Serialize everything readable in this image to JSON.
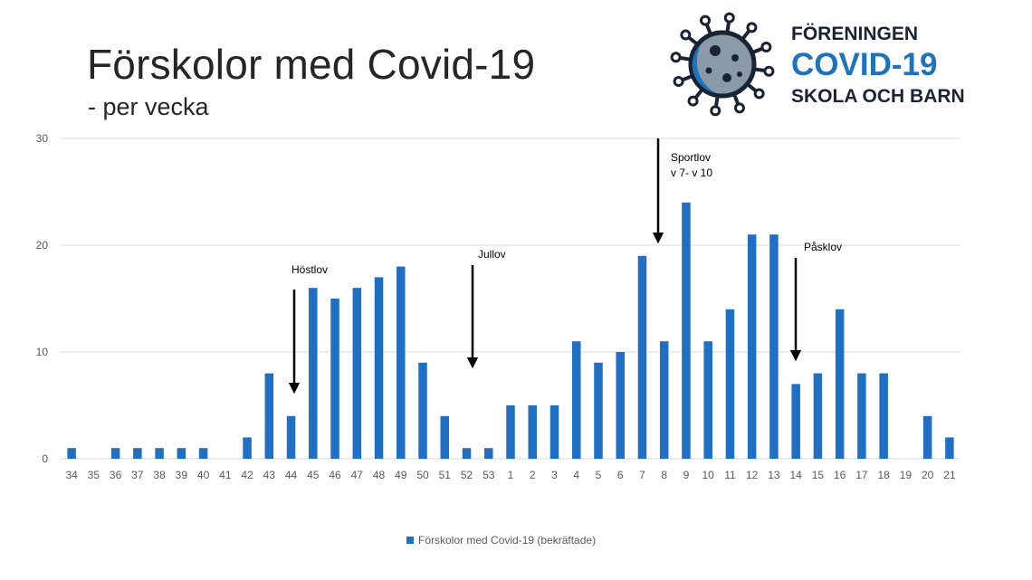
{
  "header": {
    "title": "Förskolor med Covid-19",
    "subtitle": "- per vecka"
  },
  "logo": {
    "line1": "FÖRENINGEN",
    "line2": "COVID-19",
    "line3": "SKOLA OCH BARN",
    "icon": "virus-icon",
    "colors": {
      "dark": "#1a2333",
      "accent": "#1e73be",
      "virus_body": "#8a9aa8"
    }
  },
  "chart_data": {
    "type": "bar",
    "title": "Förskolor med Covid-19",
    "subtitle": "- per vecka",
    "categories": [
      "34",
      "35",
      "36",
      "37",
      "38",
      "39",
      "40",
      "41",
      "42",
      "43",
      "44",
      "45",
      "46",
      "47",
      "48",
      "49",
      "50",
      "51",
      "52",
      "53",
      "1",
      "2",
      "3",
      "4",
      "5",
      "6",
      "7",
      "8",
      "9",
      "10",
      "11",
      "12",
      "13",
      "14",
      "15",
      "16",
      "17",
      "18",
      "19",
      "20",
      "21"
    ],
    "series": [
      {
        "name": "Förskolor med Covid-19 (bekräftade)",
        "color": "#1f6fc5",
        "values": [
          1,
          0,
          1,
          1,
          1,
          1,
          1,
          0,
          2,
          8,
          4,
          16,
          15,
          16,
          17,
          18,
          9,
          4,
          1,
          1,
          5,
          5,
          5,
          11,
          9,
          10,
          19,
          11,
          24,
          11,
          14,
          21,
          21,
          7,
          8,
          14,
          8,
          8,
          0,
          4,
          2
        ]
      }
    ],
    "ylim": [
      0,
      30
    ],
    "yticks": [
      0,
      10,
      20,
      30
    ],
    "grid": true,
    "legend_position": "bottom",
    "annotations": [
      {
        "id": "hostlov",
        "lines": [
          "Höstlov"
        ],
        "category": "44"
      },
      {
        "id": "jullov",
        "lines": [
          "Jullov"
        ],
        "category": "52"
      },
      {
        "id": "sportlov",
        "lines": [
          "Sportlov",
          "v 7- v 10"
        ],
        "category": "8"
      },
      {
        "id": "pasklov",
        "lines": [
          "Påsklov"
        ],
        "category": "14"
      }
    ]
  }
}
